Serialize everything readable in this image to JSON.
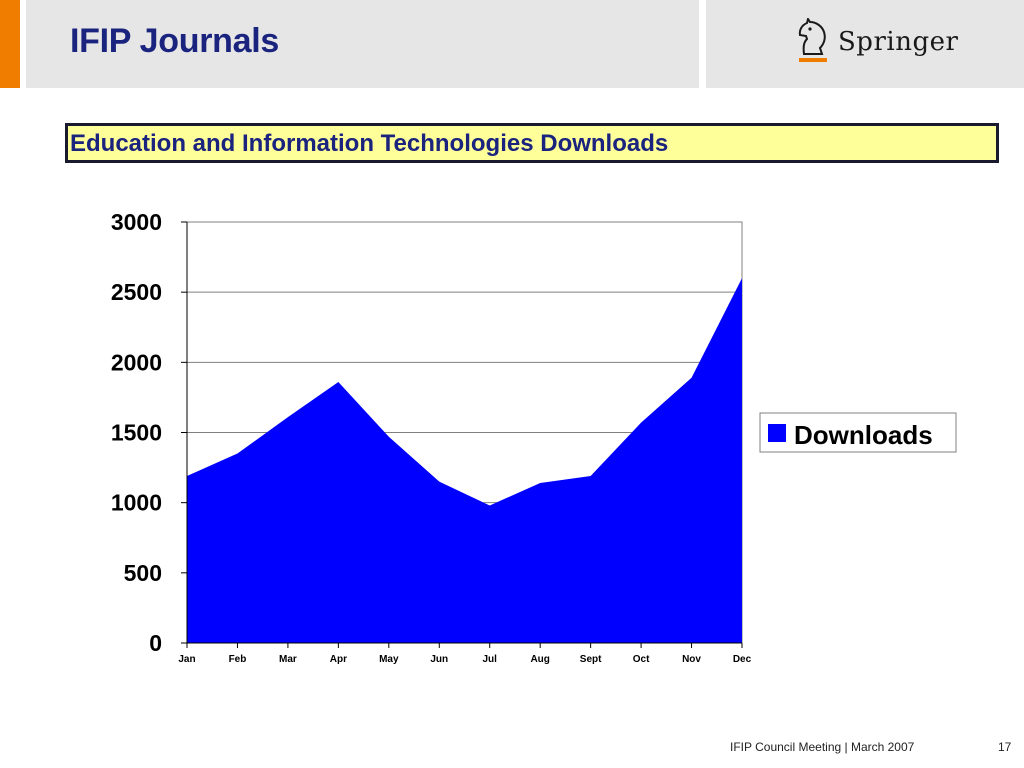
{
  "header": {
    "title": "IFIP Journals",
    "logo_text": "Springer",
    "logo_icon": "knight-chess-piece-icon"
  },
  "chart_data": {
    "type": "area",
    "title": "Education and Information Technologies Downloads",
    "categories": [
      "Jan",
      "Feb",
      "Mar",
      "Apr",
      "May",
      "Jun",
      "Jul",
      "Aug",
      "Sept",
      "Oct",
      "Nov",
      "Dec"
    ],
    "series": [
      {
        "name": "Downloads",
        "color": "#0000ff",
        "values": [
          1190,
          1350,
          1610,
          1860,
          1470,
          1150,
          980,
          1140,
          1190,
          1570,
          1890,
          2600
        ]
      }
    ],
    "yticks": [
      0,
      500,
      1000,
      1500,
      2000,
      2500,
      3000
    ],
    "ylim": [
      0,
      3000
    ],
    "grid": true,
    "legend_position": "right"
  },
  "footer": {
    "text": "IFIP Council Meeting | March 2007",
    "page_number": "17"
  },
  "colors": {
    "accent": "#f07d00",
    "title": "#1a237e",
    "title_box_fill": "#ffff99",
    "panel": "#e6e6e6"
  }
}
